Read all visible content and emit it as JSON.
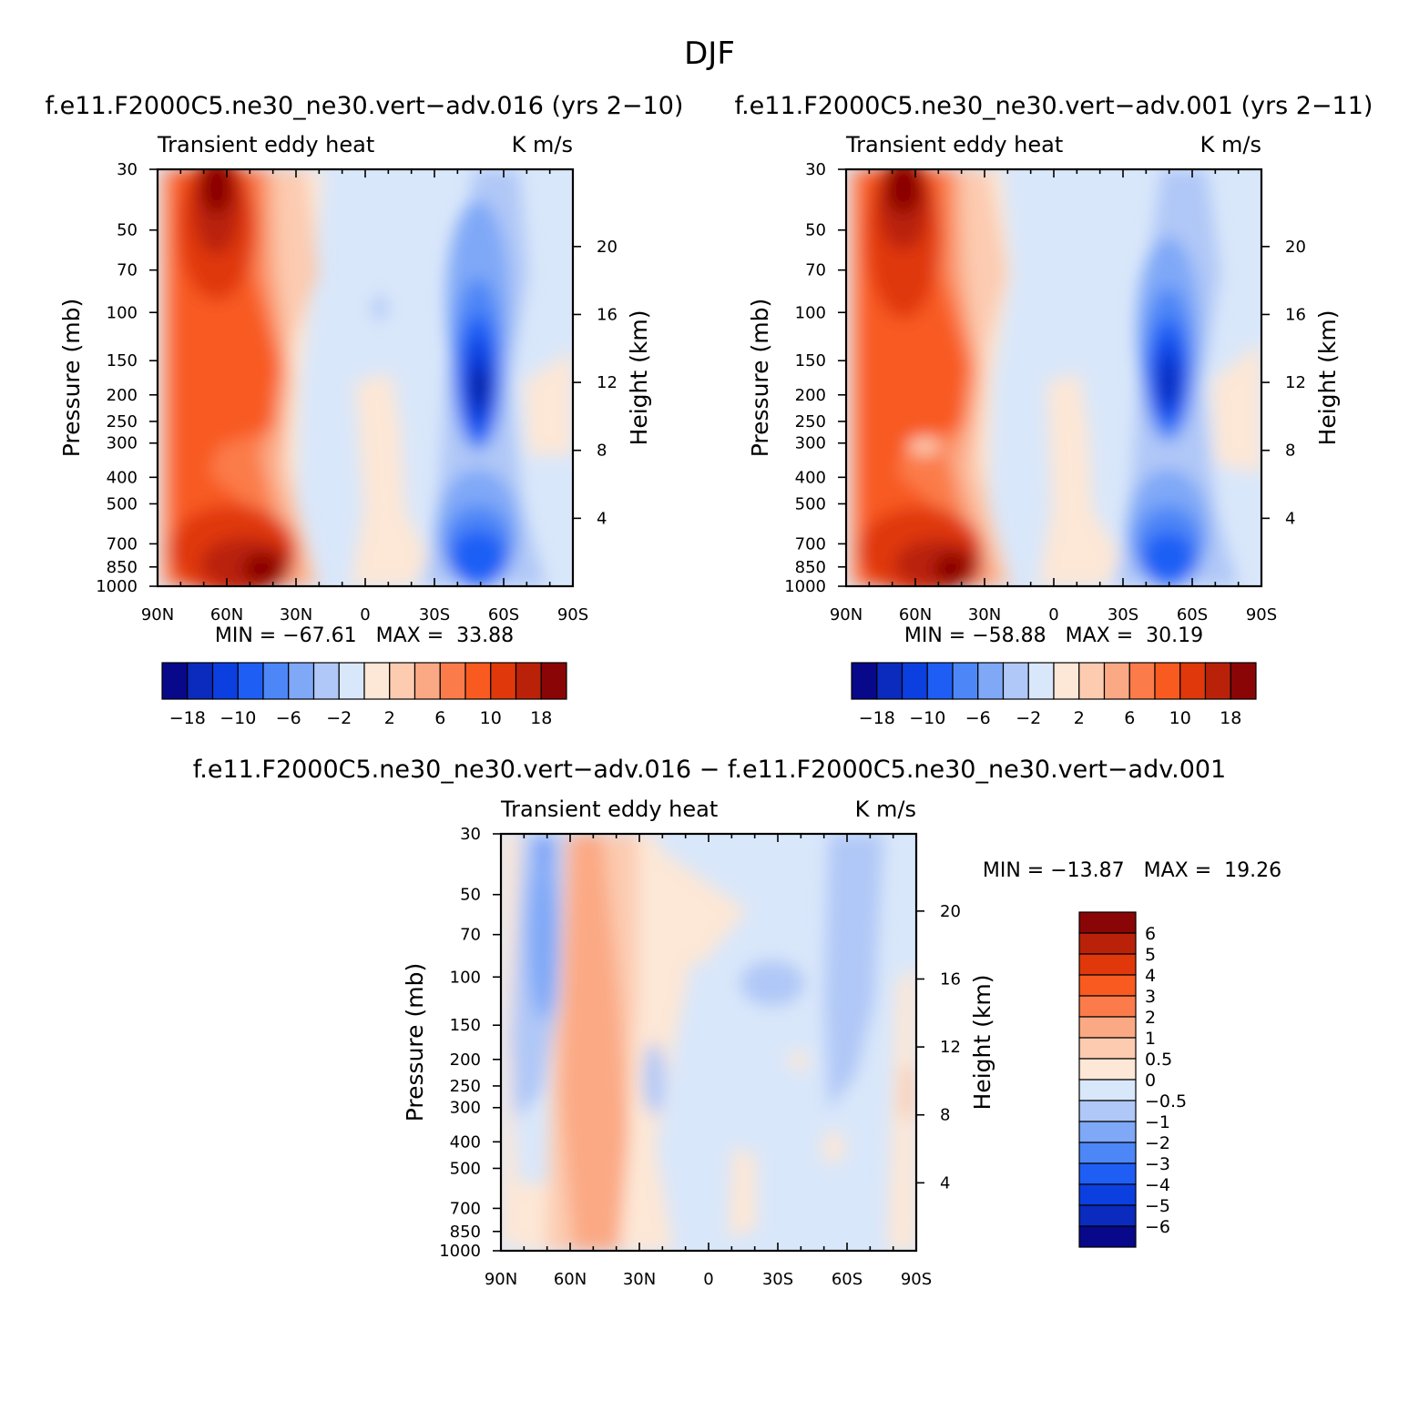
{
  "figure": {
    "title": "DJF"
  },
  "palette_top": [
    "#08088a",
    "#0a2bbd",
    "#0b3fe0",
    "#1f5ef5",
    "#4d86f7",
    "#7fa8f7",
    "#b0c8f7",
    "#d9e7fa",
    "#fde7d6",
    "#fccbb0",
    "#fba984",
    "#fb7c4a",
    "#f85a20",
    "#e0380a",
    "#b92208",
    "#8a0606"
  ],
  "palette_diff": [
    "#08088a",
    "#0a2bbd",
    "#0b3fe0",
    "#1f5ef5",
    "#4d86f7",
    "#7fa8f7",
    "#b0c8f7",
    "#d9e7fa",
    "#fde7d6",
    "#fccbb0",
    "#fba984",
    "#fb7c4a",
    "#f85a20",
    "#e0380a",
    "#b92208",
    "#8a0606"
  ],
  "chart_data": [
    {
      "type": "heatmap",
      "title": "f.e11.F2000C5.ne30_ne30.vert−adv.016 (yrs 2−10)",
      "left_label": "Transient eddy heat",
      "right_label": "K m/s",
      "xlabel": "",
      "ylabel": "Pressure (mb)",
      "y2label": "Height (km)",
      "x_ticks": [
        "90N",
        "60N",
        "30N",
        "0",
        "30S",
        "60S",
        "90S"
      ],
      "y_ticks": [
        30,
        50,
        70,
        100,
        150,
        200,
        250,
        300,
        400,
        500,
        700,
        850,
        1000
      ],
      "y2_ticks": [
        4,
        8,
        12,
        16,
        20
      ],
      "stats": "MIN = −67.61   MAX =  33.88",
      "min": -67.61,
      "max": 33.88,
      "legend": {
        "placement": "bottom",
        "labels": [
          "−18",
          "−10",
          "−6",
          "−2",
          "2",
          "6",
          "10",
          "18"
        ]
      }
    },
    {
      "type": "heatmap",
      "title": "f.e11.F2000C5.ne30_ne30.vert−adv.001 (yrs 2−11)",
      "left_label": "Transient eddy heat",
      "right_label": "K m/s",
      "xlabel": "",
      "ylabel": "Pressure (mb)",
      "y2label": "Height (km)",
      "x_ticks": [
        "90N",
        "60N",
        "30N",
        "0",
        "30S",
        "60S",
        "90S"
      ],
      "y_ticks": [
        30,
        50,
        70,
        100,
        150,
        200,
        250,
        300,
        400,
        500,
        700,
        850,
        1000
      ],
      "y2_ticks": [
        4,
        8,
        12,
        16,
        20
      ],
      "stats": "MIN = −58.88   MAX =  30.19",
      "min": -58.88,
      "max": 30.19,
      "legend": {
        "placement": "bottom",
        "labels": [
          "−18",
          "−10",
          "−6",
          "−2",
          "2",
          "6",
          "10",
          "18"
        ]
      }
    },
    {
      "type": "heatmap",
      "title": "f.e11.F2000C5.ne30_ne30.vert−adv.016 − f.e11.F2000C5.ne30_ne30.vert−adv.001",
      "left_label": "Transient eddy heat",
      "right_label": "K m/s",
      "xlabel": "",
      "ylabel": "Pressure (mb)",
      "y2label": "Height (km)",
      "x_ticks": [
        "90N",
        "60N",
        "30N",
        "0",
        "30S",
        "60S",
        "90S"
      ],
      "y_ticks": [
        30,
        50,
        70,
        100,
        150,
        200,
        250,
        300,
        400,
        500,
        700,
        850,
        1000
      ],
      "y2_ticks": [
        4,
        8,
        12,
        16,
        20
      ],
      "stats": "MIN = −13.87   MAX =  19.26",
      "min": -13.87,
      "max": 19.26,
      "legend": {
        "placement": "right",
        "labels": [
          "6",
          "5",
          "4",
          "3",
          "2",
          "1",
          "0.5",
          "0",
          "−0.5",
          "−1",
          "−2",
          "−3",
          "−4",
          "−5",
          "−6"
        ]
      }
    }
  ]
}
